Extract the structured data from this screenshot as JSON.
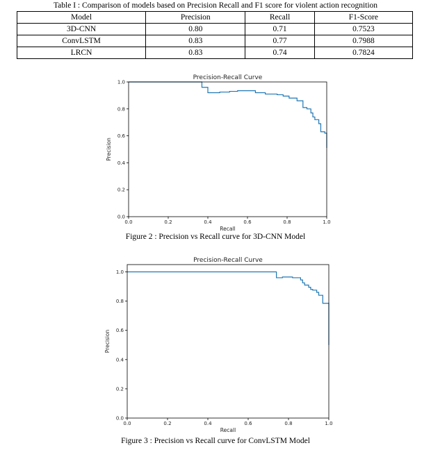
{
  "table": {
    "caption": "Table I : Comparison of models based on Precision Recall and F1 score for violent action recognition",
    "headers": [
      "Model",
      "Precision",
      "Recall",
      "F1-Score"
    ],
    "rows": [
      [
        "3D-CNN",
        "0.80",
        "0.71",
        "0.7523"
      ],
      [
        "ConvLSTM",
        "0.83",
        "0.77",
        "0.7988"
      ],
      [
        "LRCN",
        "0.83",
        "0.74",
        "0.7824"
      ]
    ]
  },
  "figures": [
    {
      "caption": "Figure 2 : Precision vs Recall curve for 3D-CNN Model",
      "chart_data": {
        "type": "line",
        "title": "Precision-Recall Curve",
        "xlabel": "Recall",
        "ylabel": "Precision",
        "xlim": [
          0.0,
          1.0
        ],
        "ylim": [
          0.0,
          1.0
        ],
        "xticks": [
          "0.0",
          "0.2",
          "0.4",
          "0.6",
          "0.8",
          "1.0"
        ],
        "yticks": [
          "0.0",
          "0.2",
          "0.4",
          "0.6",
          "0.8",
          "1.0"
        ],
        "grid": false,
        "series_color": "#1f77b4",
        "series": [
          {
            "step": true,
            "x": [
              0.0,
              0.37,
              0.4,
              0.46,
              0.51,
              0.55,
              0.64,
              0.69,
              0.75,
              0.78,
              0.81,
              0.85,
              0.88,
              0.9,
              0.92,
              0.93,
              0.94,
              0.96,
              0.97,
              0.99,
              1.0,
              1.0
            ],
            "y": [
              1.0,
              0.96,
              0.92,
              0.925,
              0.93,
              0.935,
              0.92,
              0.91,
              0.905,
              0.895,
              0.88,
              0.86,
              0.81,
              0.8,
              0.77,
              0.74,
              0.72,
              0.69,
              0.63,
              0.62,
              0.61,
              0.51
            ]
          }
        ]
      }
    },
    {
      "caption": "Figure 3 : Precision vs Recall curve for ConvLSTM Model",
      "chart_data": {
        "type": "line",
        "title": "Precision-Recall Curve",
        "xlabel": "Recall",
        "ylabel": "Precision",
        "xlim": [
          0.0,
          1.0
        ],
        "ylim": [
          0.0,
          1.05
        ],
        "xticks": [
          "0.0",
          "0.2",
          "0.4",
          "0.6",
          "0.8",
          "1.0"
        ],
        "yticks": [
          "0.0",
          "0.2",
          "0.4",
          "0.6",
          "0.8",
          "1.0"
        ],
        "grid": false,
        "series_color": "#1f77b4",
        "series": [
          {
            "step": true,
            "x": [
              0.0,
              0.74,
              0.77,
              0.82,
              0.86,
              0.87,
              0.88,
              0.9,
              0.91,
              0.92,
              0.94,
              0.95,
              0.97,
              1.0,
              1.0
            ],
            "y": [
              1.0,
              0.96,
              0.965,
              0.96,
              0.945,
              0.925,
              0.91,
              0.895,
              0.88,
              0.875,
              0.86,
              0.84,
              0.785,
              0.79,
              0.5
            ]
          }
        ]
      }
    }
  ]
}
